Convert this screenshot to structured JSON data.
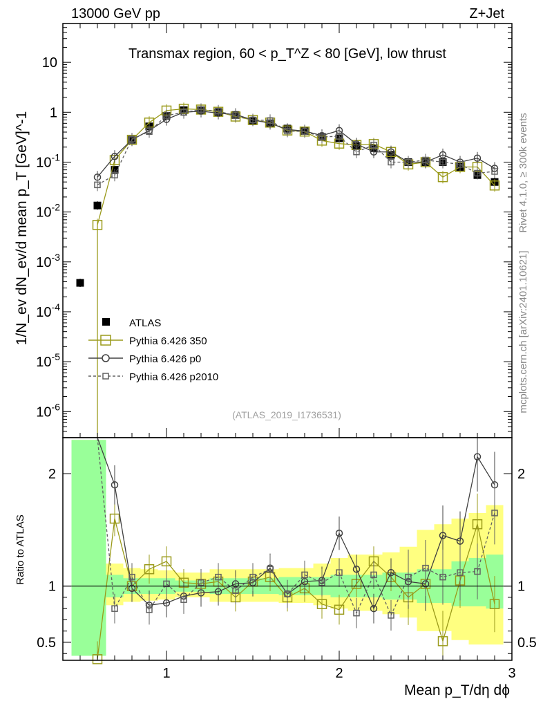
{
  "header": {
    "left": "13000 GeV pp",
    "right": "Z+Jet"
  },
  "side_labels": {
    "rivet": "Rivet 4.1.0, ≥ 300k events",
    "mcplots": "mcplots.cern.ch [arXiv:2401.10621]"
  },
  "colors": {
    "atlas": "#000000",
    "p350": "#9a9a1a",
    "p0": "#404040",
    "p2010": "#606060",
    "band_inner": "#99ff99",
    "band_outer": "#ffff80"
  },
  "chart_data": [
    {
      "type": "line",
      "panel": "main",
      "title": "Transmax region, 60 < p_T^Z < 80 [GeV], low thrust",
      "ylabel": "1/N_ev dN_ev/d mean p_T [GeV]^-1",
      "yscale": "log",
      "xlim": [
        0.4,
        3.0
      ],
      "ylim": [
        3e-07,
        60
      ],
      "ytick_labels": [
        "10^-6",
        "10^-5",
        "10^-4",
        "10^-3",
        "10^-2",
        "10^-1",
        "1",
        "10"
      ],
      "annotation": "(ATLAS_2019_I1736531)",
      "legend": [
        "ATLAS",
        "Pythia 6.426 350",
        "Pythia 6.426 p0",
        "Pythia 6.426 p2010"
      ],
      "series": [
        {
          "name": "ATLAS",
          "x": [
            0.5,
            0.6,
            0.7,
            0.8,
            0.9,
            1.0,
            1.1,
            1.2,
            1.3,
            1.4,
            1.5,
            1.6,
            1.7,
            1.8,
            1.9,
            2.0,
            2.1,
            2.2,
            2.3,
            2.4,
            2.5,
            2.6,
            2.7,
            2.8,
            2.9
          ],
          "values": [
            0.00038,
            0.0135,
            0.07,
            0.28,
            0.52,
            0.85,
            1.1,
            1.1,
            1.0,
            0.88,
            0.66,
            0.6,
            0.47,
            0.42,
            0.32,
            0.3,
            0.21,
            0.19,
            0.14,
            0.1,
            0.1,
            0.1,
            0.08,
            0.055,
            0.04
          ]
        },
        {
          "name": "Pythia 6.426 350",
          "x": [
            0.6,
            0.7,
            0.8,
            0.9,
            1.0,
            1.1,
            1.2,
            1.3,
            1.4,
            1.5,
            1.6,
            1.7,
            1.8,
            1.9,
            2.0,
            2.1,
            2.2,
            2.3,
            2.4,
            2.5,
            2.6,
            2.7,
            2.8,
            2.9
          ],
          "values": [
            0.0055,
            0.11,
            0.28,
            0.62,
            1.08,
            1.17,
            1.13,
            1.02,
            0.82,
            0.7,
            0.62,
            0.43,
            0.41,
            0.27,
            0.235,
            0.22,
            0.23,
            0.16,
            0.09,
            0.1,
            0.05,
            0.08,
            0.08,
            0.034
          ]
        },
        {
          "name": "Pythia 6.426 p0",
          "x": [
            0.6,
            0.7,
            0.8,
            0.9,
            1.0,
            1.1,
            1.2,
            1.3,
            1.4,
            1.5,
            1.6,
            1.7,
            1.8,
            1.9,
            2.0,
            2.1,
            2.2,
            2.3,
            2.4,
            2.5,
            2.6,
            2.7,
            2.8,
            2.9
          ],
          "values": [
            0.05,
            0.13,
            0.28,
            0.43,
            0.72,
            1.0,
            1.05,
            0.96,
            0.9,
            0.7,
            0.6,
            0.45,
            0.42,
            0.34,
            0.43,
            0.23,
            0.16,
            0.16,
            0.1,
            0.1,
            0.14,
            0.1,
            0.12,
            0.075
          ]
        },
        {
          "name": "Pythia 6.426 p2010",
          "x": [
            0.6,
            0.7,
            0.8,
            0.9,
            1.0,
            1.1,
            1.2,
            1.3,
            1.4,
            1.5,
            1.6,
            1.7,
            1.8,
            1.9,
            2.0,
            2.1,
            2.2,
            2.3,
            2.4,
            2.5,
            2.6,
            2.7,
            2.8,
            2.9
          ],
          "values": [
            0.035,
            0.055,
            0.29,
            0.41,
            0.86,
            0.99,
            1.13,
            1.05,
            0.85,
            0.7,
            0.68,
            0.42,
            0.41,
            0.32,
            0.33,
            0.16,
            0.22,
            0.1,
            0.1,
            0.11,
            0.1,
            0.09,
            0.06,
            0.065
          ]
        }
      ]
    },
    {
      "type": "line",
      "panel": "ratio",
      "ylabel": "Ratio to ATLAS",
      "xlabel": "Mean p_T/dη dϕ",
      "xlim": [
        0.4,
        3.0
      ],
      "ylim": [
        0.34,
        2.32
      ],
      "xtick_labels": [
        "1",
        "2",
        "3"
      ],
      "ytick_labels": [
        "0.5",
        "1",
        "2"
      ],
      "bands": {
        "x_edges": [
          0.45,
          0.55,
          0.65,
          0.75,
          0.85,
          0.95,
          1.05,
          1.15,
          1.25,
          1.35,
          1.45,
          1.55,
          1.65,
          1.75,
          1.85,
          1.95,
          2.05,
          2.15,
          2.25,
          2.35,
          2.45,
          2.55,
          2.65,
          2.75,
          2.85,
          2.95
        ],
        "inner": [
          [
            0.38,
            2.3
          ],
          [
            0.38,
            2.3
          ],
          [
            0.9,
            1.1
          ],
          [
            0.93,
            1.07
          ],
          [
            0.93,
            1.07
          ],
          [
            0.93,
            1.07
          ],
          [
            0.95,
            1.05
          ],
          [
            0.95,
            1.05
          ],
          [
            0.93,
            1.07
          ],
          [
            0.93,
            1.07
          ],
          [
            0.93,
            1.07
          ],
          [
            0.93,
            1.07
          ],
          [
            0.92,
            1.08
          ],
          [
            0.92,
            1.08
          ],
          [
            0.92,
            1.08
          ],
          [
            0.9,
            1.1
          ],
          [
            0.9,
            1.1
          ],
          [
            0.9,
            1.1
          ],
          [
            0.88,
            1.12
          ],
          [
            0.88,
            1.12
          ],
          [
            0.85,
            1.15
          ],
          [
            0.85,
            1.15
          ],
          [
            0.82,
            1.22
          ],
          [
            0.82,
            1.25
          ],
          [
            0.8,
            1.28
          ]
        ],
        "outer": [
          [
            0.38,
            2.3
          ],
          [
            0.38,
            2.3
          ],
          [
            0.83,
            1.2
          ],
          [
            0.86,
            1.16
          ],
          [
            0.87,
            1.15
          ],
          [
            0.88,
            1.14
          ],
          [
            0.9,
            1.12
          ],
          [
            0.9,
            1.12
          ],
          [
            0.86,
            1.15
          ],
          [
            0.86,
            1.15
          ],
          [
            0.86,
            1.15
          ],
          [
            0.86,
            1.15
          ],
          [
            0.85,
            1.16
          ],
          [
            0.85,
            1.16
          ],
          [
            0.83,
            1.2
          ],
          [
            0.8,
            1.25
          ],
          [
            0.78,
            1.28
          ],
          [
            0.78,
            1.28
          ],
          [
            0.75,
            1.3
          ],
          [
            0.72,
            1.35
          ],
          [
            0.6,
            1.5
          ],
          [
            0.6,
            1.55
          ],
          [
            0.52,
            1.6
          ],
          [
            0.48,
            1.65
          ],
          [
            0.48,
            1.72
          ]
        ]
      },
      "series": [
        {
          "name": "Pythia 6.426 350",
          "x": [
            0.6,
            0.7,
            0.8,
            0.9,
            1.0,
            1.1,
            1.2,
            1.3,
            1.4,
            1.5,
            1.6,
            1.7,
            1.8,
            1.9,
            2.0,
            2.1,
            2.2,
            2.3,
            2.4,
            2.5,
            2.6,
            2.7,
            2.8,
            2.9
          ],
          "values": [
            0.35,
            1.6,
            1.0,
            1.15,
            1.22,
            1.03,
            1.02,
            1.04,
            0.9,
            1.04,
            1.08,
            0.9,
            0.98,
            0.84,
            0.79,
            1.02,
            1.22,
            1.08,
            0.9,
            1.02,
            0.51,
            1.05,
            1.55,
            0.84
          ]
        },
        {
          "name": "Pythia 6.426 p0",
          "x": [
            0.6,
            0.7,
            0.8,
            0.9,
            1.0,
            1.1,
            1.2,
            1.3,
            1.4,
            1.5,
            1.6,
            1.7,
            1.8,
            1.9,
            2.0,
            2.1,
            2.2,
            2.3,
            2.4,
            2.5,
            2.6,
            2.7,
            2.8,
            2.9
          ],
          "values": [
            3.5,
            1.9,
            0.98,
            0.83,
            0.85,
            0.91,
            0.94,
            0.95,
            1.02,
            1.03,
            1.16,
            0.93,
            1.04,
            1.05,
            1.47,
            1.15,
            0.8,
            1.12,
            1.04,
            1.02,
            1.45,
            1.4,
            2.15,
            1.9
          ]
        },
        {
          "name": "Pythia 6.426 p2010",
          "x": [
            0.6,
            0.7,
            0.8,
            0.9,
            1.0,
            1.1,
            1.2,
            1.3,
            1.4,
            1.5,
            1.6,
            1.7,
            1.8,
            1.9,
            2.0,
            2.1,
            2.2,
            2.3,
            2.4,
            2.5,
            2.6,
            2.7,
            2.8,
            2.9
          ],
          "values": [
            2.5,
            0.8,
            1.08,
            0.79,
            1.02,
            0.88,
            1.03,
            1.08,
            0.96,
            1.08,
            1.15,
            0.93,
            1.1,
            1.03,
            1.12,
            0.76,
            1.1,
            0.74,
            1.08,
            1.16,
            1.08,
            1.12,
            1.13,
            1.65
          ]
        }
      ]
    }
  ]
}
